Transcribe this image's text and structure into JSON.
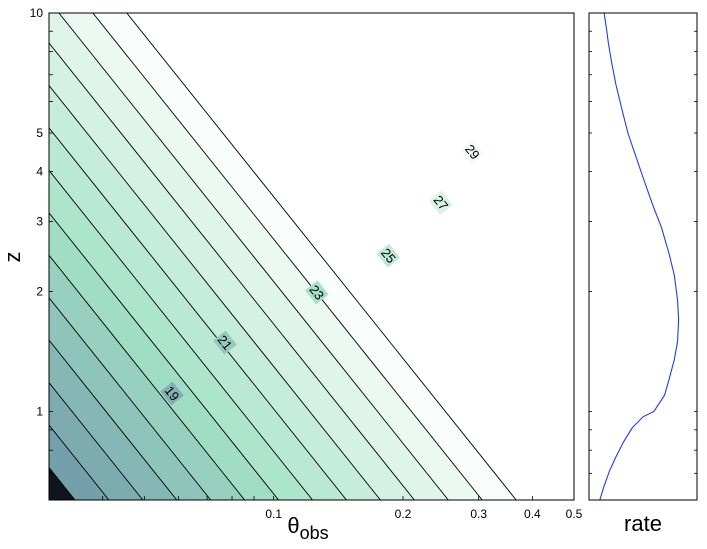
{
  "chart_data": [
    {
      "type": "contour",
      "xlabel": "θ",
      "xlabel_subscript": "obs",
      "ylabel": "z",
      "x_scale": "log",
      "y_scale": "log",
      "xlim": [
        0.03,
        0.5
      ],
      "ylim": [
        0.6,
        10
      ],
      "x_ticks": [
        {
          "value": 0.1,
          "label": "0.1"
        },
        {
          "value": 0.2,
          "label": "0.2"
        },
        {
          "value": 0.3,
          "label": "0.3"
        },
        {
          "value": 0.4,
          "label": "0.4"
        },
        {
          "value": 0.5,
          "label": "0.5"
        }
      ],
      "y_ticks": [
        {
          "value": 1,
          "label": "1"
        },
        {
          "value": 2,
          "label": "2"
        },
        {
          "value": 3,
          "label": "3"
        },
        {
          "value": 4,
          "label": "4"
        },
        {
          "value": 5,
          "label": "5"
        },
        {
          "value": 10,
          "label": "10"
        }
      ],
      "levels": [
        17,
        18,
        19,
        20,
        21,
        22,
        23,
        24,
        25,
        26,
        27,
        28,
        29,
        30
      ],
      "labeled_levels": [
        {
          "level": 19,
          "label": "19",
          "x": 0.058,
          "y": 1.11
        },
        {
          "level": 21,
          "label": "21",
          "x": 0.077,
          "y": 1.49
        },
        {
          "level": 23,
          "label": "23",
          "x": 0.126,
          "y": 1.99
        },
        {
          "level": 25,
          "label": "25",
          "x": 0.185,
          "y": 2.46
        },
        {
          "level": 27,
          "label": "27",
          "x": 0.245,
          "y": 3.34
        },
        {
          "level": 29,
          "label": "29",
          "x": 0.29,
          "y": 4.48
        }
      ],
      "colormap": {
        "low": "#0f1420",
        "mid_low": "#6e9aa8",
        "mid": "#a6e2c8",
        "high": "#ffffff"
      },
      "grid": false
    },
    {
      "type": "line",
      "xlabel": "rate",
      "ylabel": "",
      "y_scale": "log",
      "ylim": [
        0.6,
        10
      ],
      "x": [
        0.1,
        0.14,
        0.19,
        0.25,
        0.32,
        0.4,
        0.5,
        0.6,
        0.7,
        0.74,
        0.79,
        0.82,
        0.83,
        0.82,
        0.79,
        0.74,
        0.67,
        0.59,
        0.51,
        0.43,
        0.36,
        0.3,
        0.25,
        0.21,
        0.18,
        0.16,
        0.14
      ],
      "y": [
        0.6,
        0.65,
        0.71,
        0.77,
        0.84,
        0.91,
        0.97,
        1.0,
        1.1,
        1.2,
        1.35,
        1.5,
        1.7,
        1.9,
        2.2,
        2.5,
        2.9,
        3.3,
        3.8,
        4.4,
        5.0,
        5.8,
        6.6,
        7.5,
        8.4,
        9.2,
        10
      ],
      "color": "#1f3fe0",
      "grid": false
    }
  ]
}
